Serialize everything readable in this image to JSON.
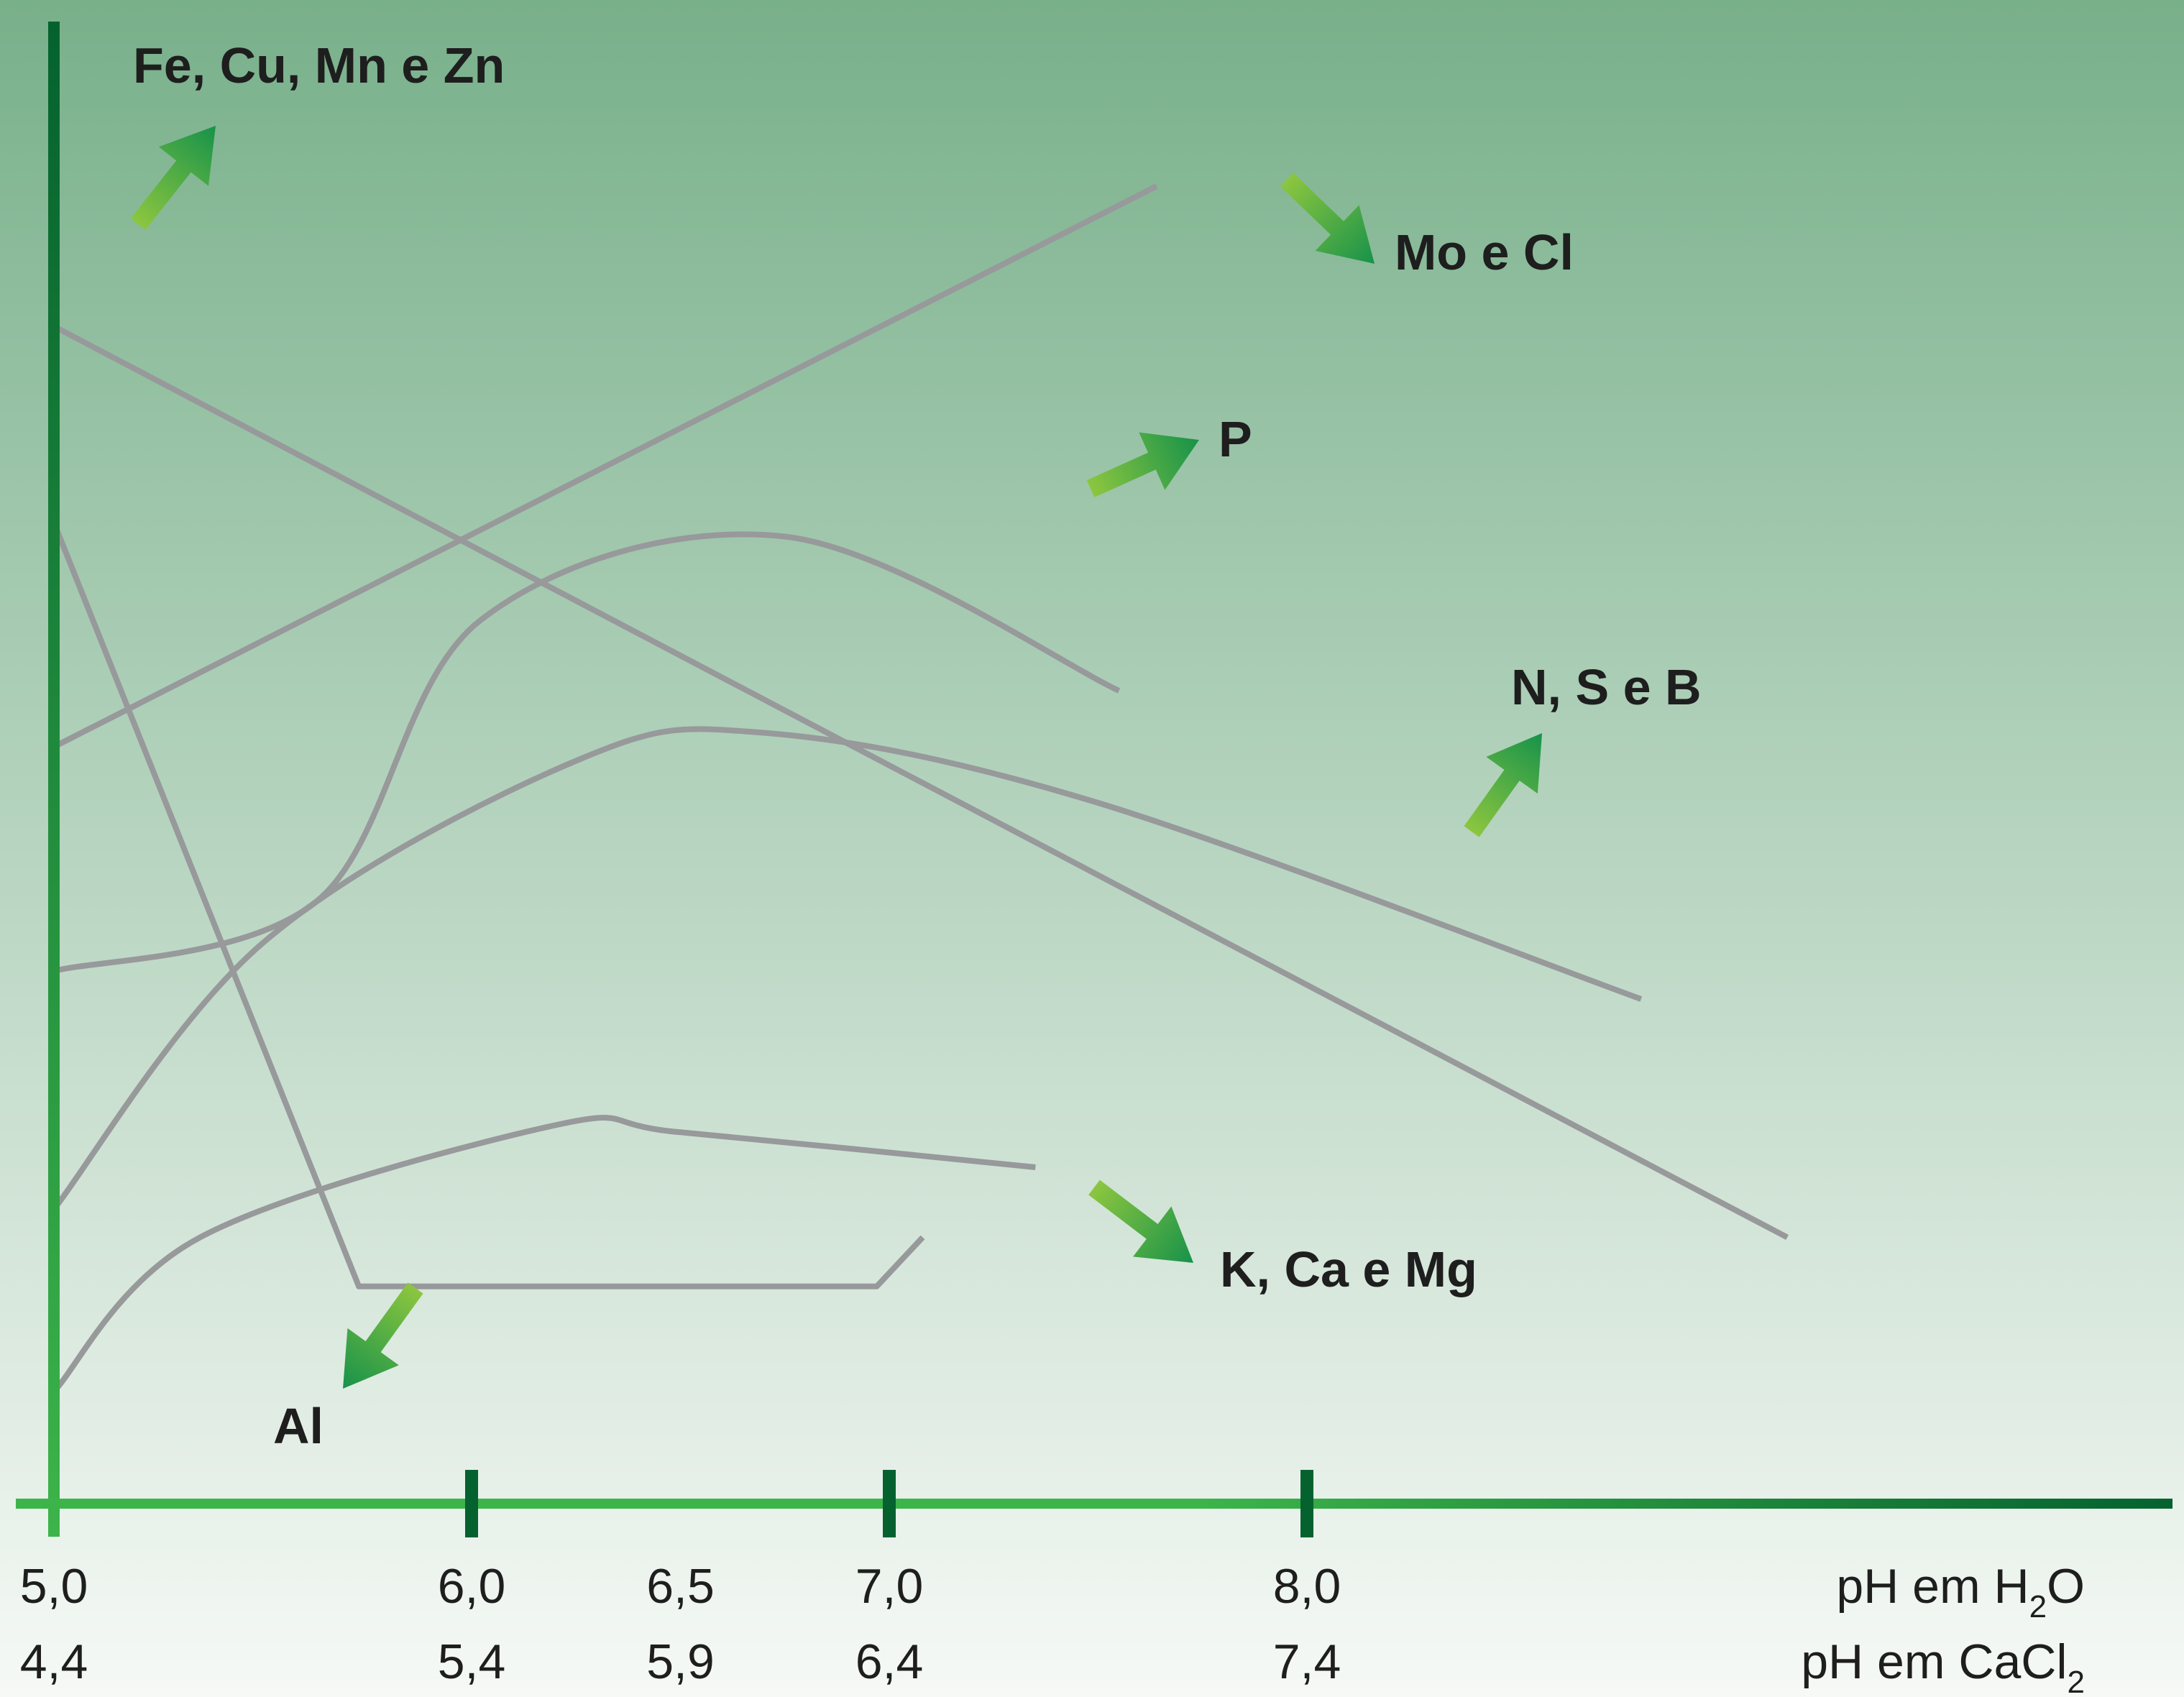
{
  "colors": {
    "background_top": "#78b08a",
    "background_bottom": "#f6f9f6",
    "curve": "#97999b",
    "axis_dark": "#05622f",
    "axis_light": "#3cb44a",
    "arrow_light": "#8cc63f",
    "arrow_dark": "#17924a",
    "marker_light": "#d6e03d",
    "marker_dark": "#1f9a4a",
    "text": "#1e1e1e"
  },
  "icons": {
    "series_pointer": "gradient-arrow-icon"
  },
  "chart_data": {
    "type": "line",
    "title": "",
    "xlabel": "",
    "ylabel": "",
    "x_scale_rows": [
      {
        "label_html": "pH em H₂O",
        "label_text": "pH em H",
        "label_sub": "2",
        "label_tail": "O",
        "ticks": [
          "5,0",
          "6,0",
          "6,5",
          "7,0",
          "8,0"
        ]
      },
      {
        "label_html": "pH em CaCl₂",
        "label_text": "pH em CaCl",
        "label_sub": "2",
        "label_tail": "",
        "ticks": [
          "4,4",
          "5,4",
          "5,9",
          "6,4",
          "7,4"
        ]
      }
    ],
    "xlim": [
      5.0,
      8.0
    ],
    "ylim": [
      0,
      10
    ],
    "grid": false,
    "legend": "none",
    "reference_line": {
      "x": 6.5
    },
    "series": [
      {
        "name": "Fe, Cu, Mn e Zn",
        "points": [
          [
            5.0,
            8.4
          ],
          [
            9.15,
            1.9
          ]
        ]
      },
      {
        "name": "Mo e Cl",
        "points": [
          [
            5.0,
            5.4
          ],
          [
            7.64,
            9.4
          ]
        ]
      },
      {
        "name": "P",
        "points": [
          [
            5.0,
            3.8
          ],
          [
            5.63,
            4.3
          ],
          [
            6.02,
            6.3
          ],
          [
            6.75,
            6.9
          ],
          [
            7.55,
            5.8
          ]
        ]
      },
      {
        "name": "N, S e B",
        "points": [
          [
            5.0,
            2.1
          ],
          [
            5.5,
            4.0
          ],
          [
            6.25,
            5.3
          ],
          [
            6.7,
            5.5
          ],
          [
            7.5,
            5.0
          ],
          [
            8.8,
            3.6
          ]
        ]
      },
      {
        "name": "K, Ca e Mg",
        "points": [
          [
            5.0,
            0.8
          ],
          [
            5.35,
            1.9
          ],
          [
            6.2,
            2.7
          ],
          [
            6.5,
            2.65
          ],
          [
            7.35,
            2.4
          ]
        ]
      },
      {
        "name": "Al",
        "points": [
          [
            5.0,
            7.0
          ],
          [
            5.73,
            1.55
          ],
          [
            6.97,
            1.55
          ],
          [
            7.08,
            1.9
          ]
        ]
      }
    ]
  }
}
